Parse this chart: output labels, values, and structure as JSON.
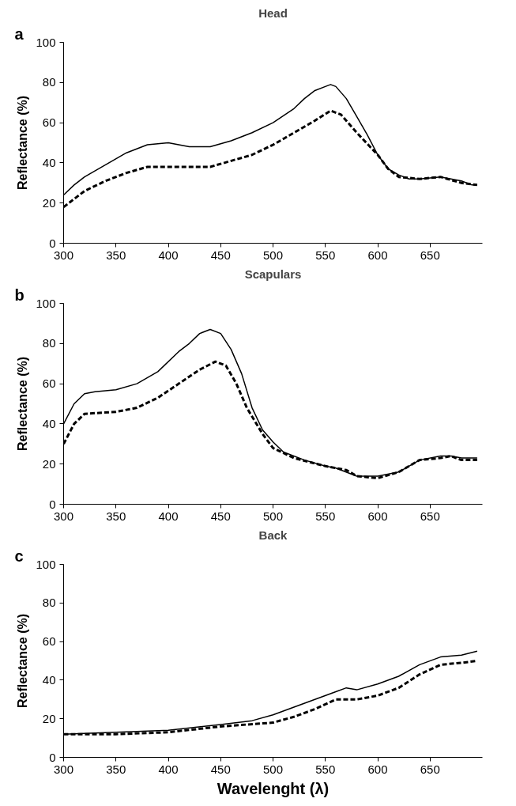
{
  "chart_data": [
    {
      "type": "line",
      "title": "Head",
      "ylabel": "Reflectance (%)",
      "annotations": [
        "a"
      ],
      "xlim": [
        300,
        700
      ],
      "xticks": [
        300,
        350,
        400,
        450,
        500,
        550,
        600,
        650
      ],
      "ylim": [
        0,
        100
      ],
      "yticks": [
        0,
        20,
        40,
        60,
        80,
        100
      ],
      "grid": false,
      "series": [
        {
          "color": "#000000",
          "line_style": "solid",
          "x": [
            300,
            310,
            320,
            340,
            360,
            380,
            400,
            420,
            440,
            460,
            480,
            500,
            520,
            530,
            540,
            550,
            555,
            560,
            570,
            580,
            590,
            600,
            610,
            620,
            630,
            640,
            660,
            680,
            690,
            695
          ],
          "values": [
            24,
            29,
            33,
            39,
            45,
            49,
            50,
            48,
            48,
            51,
            55,
            60,
            67,
            72,
            76,
            78,
            79,
            78,
            72,
            63,
            54,
            44,
            37,
            34,
            32,
            32,
            33,
            31,
            29,
            29
          ]
        },
        {
          "color": "#000000",
          "line_style": "dashed",
          "x": [
            300,
            320,
            340,
            360,
            380,
            400,
            420,
            440,
            460,
            480,
            500,
            520,
            540,
            555,
            565,
            580,
            600,
            610,
            620,
            640,
            660,
            680,
            695
          ],
          "values": [
            18,
            26,
            31,
            35,
            38,
            38,
            38,
            38,
            41,
            44,
            49,
            55,
            61,
            66,
            64,
            55,
            44,
            37,
            33,
            32,
            33,
            30,
            29
          ]
        }
      ]
    },
    {
      "type": "line",
      "title": "Scapulars",
      "ylabel": "Reflectance (%)",
      "annotations": [
        "b"
      ],
      "xlim": [
        300,
        700
      ],
      "xticks": [
        300,
        350,
        400,
        450,
        500,
        550,
        600,
        650
      ],
      "ylim": [
        0,
        100
      ],
      "yticks": [
        0,
        20,
        40,
        60,
        80,
        100
      ],
      "grid": false,
      "series": [
        {
          "color": "#000000",
          "line_style": "solid",
          "x": [
            300,
            310,
            320,
            330,
            350,
            370,
            390,
            410,
            420,
            430,
            440,
            450,
            460,
            470,
            480,
            490,
            500,
            510,
            530,
            550,
            560,
            580,
            600,
            620,
            640,
            660,
            670,
            680,
            695
          ],
          "values": [
            40,
            50,
            55,
            56,
            57,
            60,
            66,
            76,
            80,
            85,
            87,
            85,
            77,
            65,
            48,
            37,
            31,
            26,
            22,
            19,
            18,
            14,
            14,
            16,
            22,
            24,
            24,
            23,
            23
          ]
        },
        {
          "color": "#000000",
          "line_style": "dashed",
          "x": [
            300,
            310,
            320,
            350,
            370,
            390,
            410,
            430,
            445,
            455,
            465,
            475,
            490,
            500,
            520,
            550,
            570,
            580,
            600,
            620,
            640,
            660,
            670,
            680,
            695
          ],
          "values": [
            30,
            40,
            45,
            46,
            48,
            53,
            60,
            67,
            71,
            69,
            60,
            48,
            35,
            28,
            23,
            19,
            17,
            14,
            13,
            16,
            22,
            23,
            24,
            22,
            22
          ]
        }
      ]
    },
    {
      "type": "line",
      "title": "Back",
      "ylabel": "Reflectance (%)",
      "xlabel": "Wavelenght (λ)",
      "annotations": [
        "c"
      ],
      "xlim": [
        300,
        700
      ],
      "xticks": [
        300,
        350,
        400,
        450,
        500,
        550,
        600,
        650
      ],
      "ylim": [
        0,
        100
      ],
      "yticks": [
        0,
        20,
        40,
        60,
        80,
        100
      ],
      "grid": false,
      "series": [
        {
          "color": "#000000",
          "line_style": "solid",
          "x": [
            300,
            350,
            400,
            450,
            480,
            500,
            520,
            540,
            560,
            570,
            580,
            600,
            620,
            640,
            660,
            680,
            695
          ],
          "values": [
            12,
            13,
            14,
            17,
            19,
            22,
            26,
            30,
            34,
            36,
            35,
            38,
            42,
            48,
            52,
            53,
            55
          ]
        },
        {
          "color": "#000000",
          "line_style": "dashed",
          "x": [
            300,
            350,
            400,
            450,
            500,
            520,
            540,
            560,
            580,
            600,
            620,
            640,
            660,
            680,
            695
          ],
          "values": [
            12,
            12,
            13,
            16,
            18,
            21,
            25,
            30,
            30,
            32,
            36,
            43,
            48,
            49,
            50
          ]
        }
      ]
    }
  ]
}
